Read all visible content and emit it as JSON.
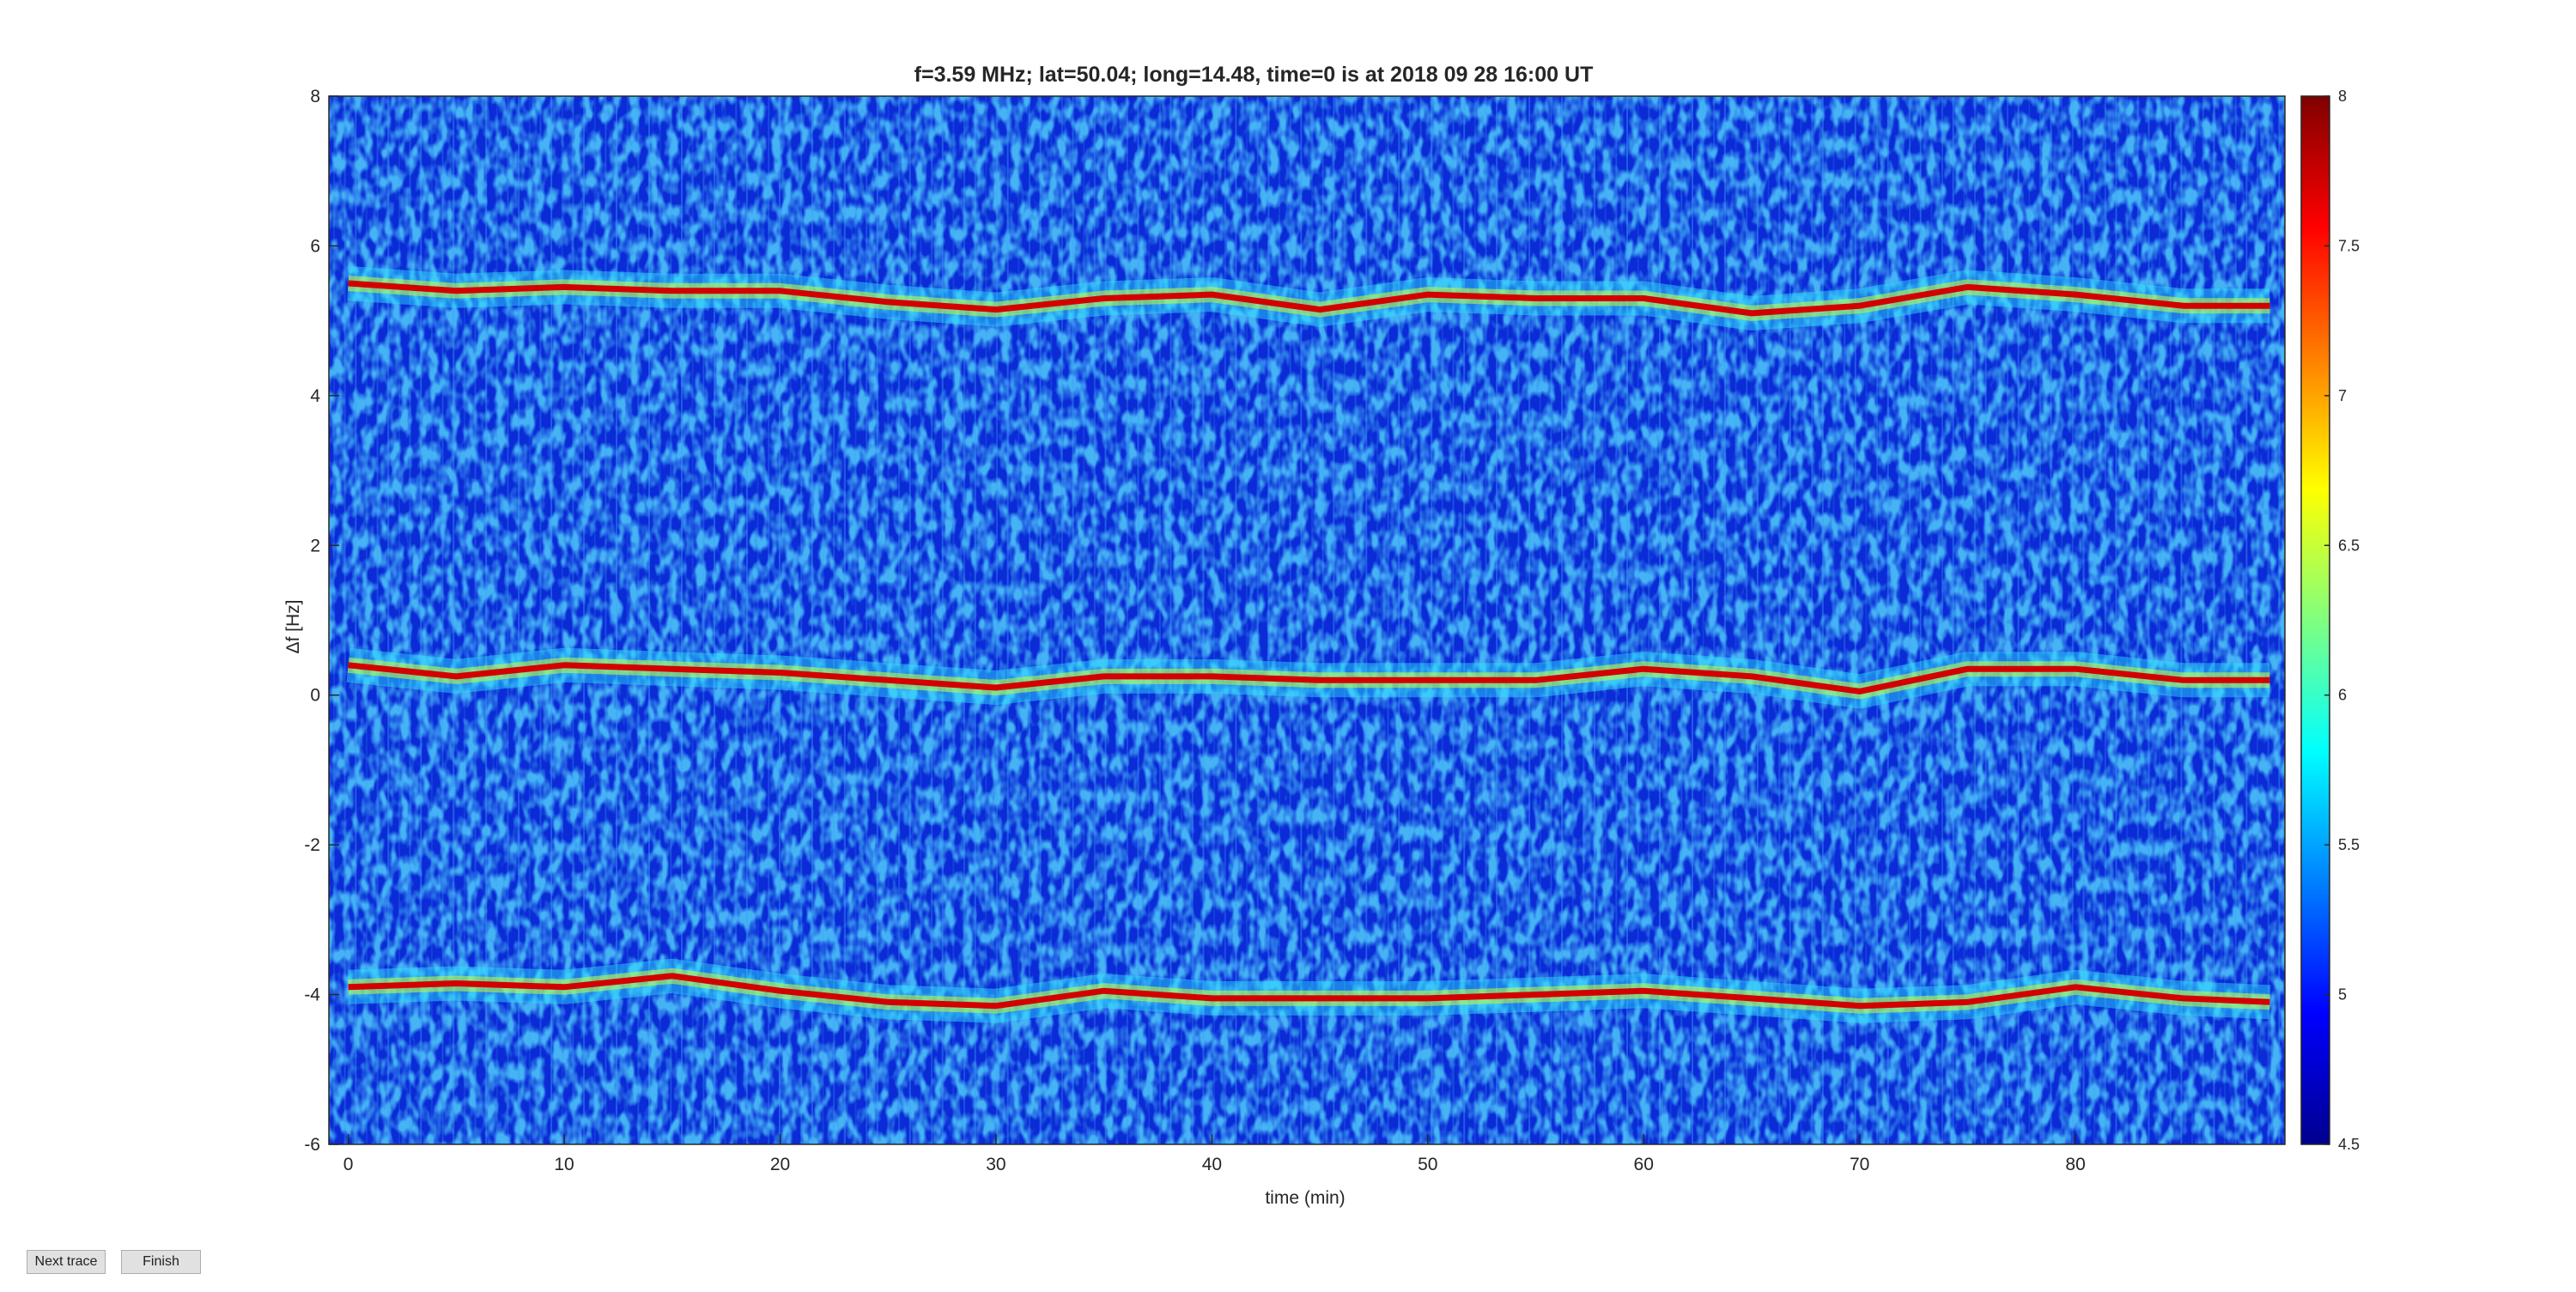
{
  "chart_data": {
    "type": "line",
    "title": "f=3.59 MHz;  lat=50.04; long=14.48, time=0 is at 2018 09 28 16:00 UT",
    "xlabel": "time (min)",
    "ylabel": "Δf [Hz]",
    "xlim": [
      -0.9,
      89.7
    ],
    "ylim": [
      -6,
      8
    ],
    "xticks": [
      0,
      10,
      20,
      30,
      40,
      50,
      60,
      70,
      80
    ],
    "yticks": [
      -6,
      -4,
      -2,
      0,
      2,
      4,
      6,
      8
    ],
    "x": [
      0,
      5,
      10,
      15,
      20,
      25,
      30,
      35,
      40,
      45,
      50,
      55,
      60,
      65,
      70,
      75,
      80,
      85,
      89
    ],
    "series": [
      {
        "color": "#d40000",
        "values": [
          5.5,
          5.4,
          5.45,
          5.4,
          5.4,
          5.25,
          5.15,
          5.3,
          5.35,
          5.15,
          5.35,
          5.3,
          5.3,
          5.1,
          5.2,
          5.45,
          5.35,
          5.2,
          5.2
        ]
      },
      {
        "color": "#d40000",
        "values": [
          0.4,
          0.25,
          0.4,
          0.35,
          0.3,
          0.2,
          0.1,
          0.25,
          0.25,
          0.2,
          0.2,
          0.2,
          0.35,
          0.25,
          0.05,
          0.35,
          0.35,
          0.2,
          0.2
        ]
      },
      {
        "color": "#d40000",
        "values": [
          -3.9,
          -3.85,
          -3.9,
          -3.75,
          -3.95,
          -4.1,
          -4.15,
          -3.95,
          -4.05,
          -4.05,
          -4.05,
          -4.0,
          -3.95,
          -4.05,
          -4.15,
          -4.1,
          -3.9,
          -4.05,
          -4.1
        ]
      }
    ],
    "background_color": "#0a2bd6",
    "clim": [
      4.5,
      8
    ],
    "cticks": [
      4.5,
      5,
      5.5,
      6,
      6.5,
      7,
      7.5,
      8
    ]
  },
  "buttons": [
    "Next trace",
    "Finish"
  ]
}
